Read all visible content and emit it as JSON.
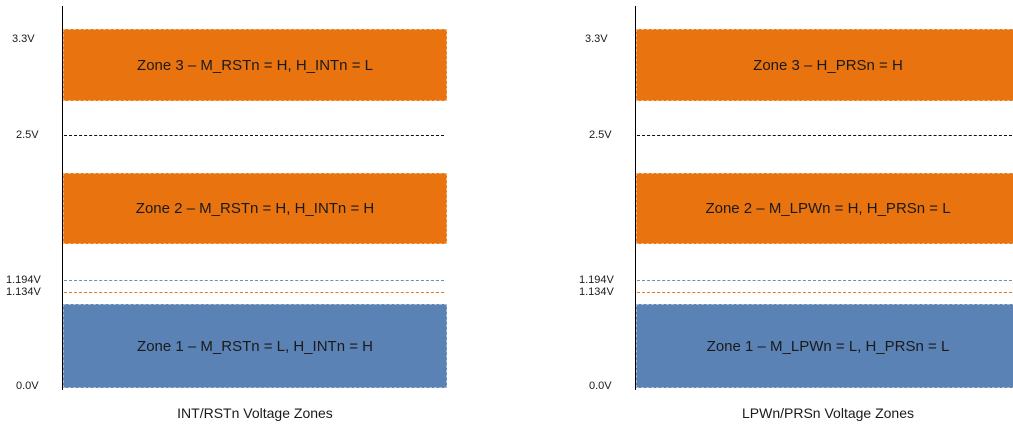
{
  "colors": {
    "zone_orange": "#e8730f",
    "zone_blue": "#5b82b5",
    "guide_blue": "#6b8fb8",
    "guide_orange": "#e87722"
  },
  "ticks": {
    "v33": "3.3V",
    "v25": "2.5V",
    "v1194": "1.194V",
    "v1134": "1.134V",
    "v00": "0.0V"
  },
  "left": {
    "caption": "INT/RSTn Voltage Zones",
    "zone3": "Zone 3 – M_RSTn = H, H_INTn = L",
    "zone2": "Zone 2 – M_RSTn = H, H_INTn = H",
    "zone1": "Zone 1 – M_RSTn = L, H_INTn = H"
  },
  "right": {
    "caption": "LPWn/PRSn Voltage Zones",
    "zone3": "Zone 3 – H_PRSn = H",
    "zone2": "Zone 2 – M_LPWn = H, H_PRSn = L",
    "zone1": "Zone 1 – M_LPWn = L, H_PRSn = L"
  }
}
